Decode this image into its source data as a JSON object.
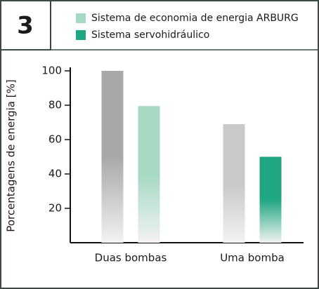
{
  "chart_data": {
    "type": "bar",
    "badge": "3",
    "y_label": "Porcentagens de energia [%]",
    "categories": [
      "Duas bombas",
      "Uma bomba"
    ],
    "series": [
      {
        "name": null,
        "colors": [
          "#a8a8aa",
          "#c9c9cb"
        ],
        "values": [
          100,
          69
        ]
      },
      {
        "name": "Sistema de economia de energia ARBURG",
        "color": "#a5d9c3",
        "values": [
          79.5,
          null
        ]
      },
      {
        "name": "Sistema servohidráulico",
        "color": "#1fa682",
        "values": [
          null,
          50
        ]
      }
    ],
    "ylim": [
      0,
      100
    ],
    "yticks": [
      20,
      40,
      60,
      80,
      100
    ]
  }
}
